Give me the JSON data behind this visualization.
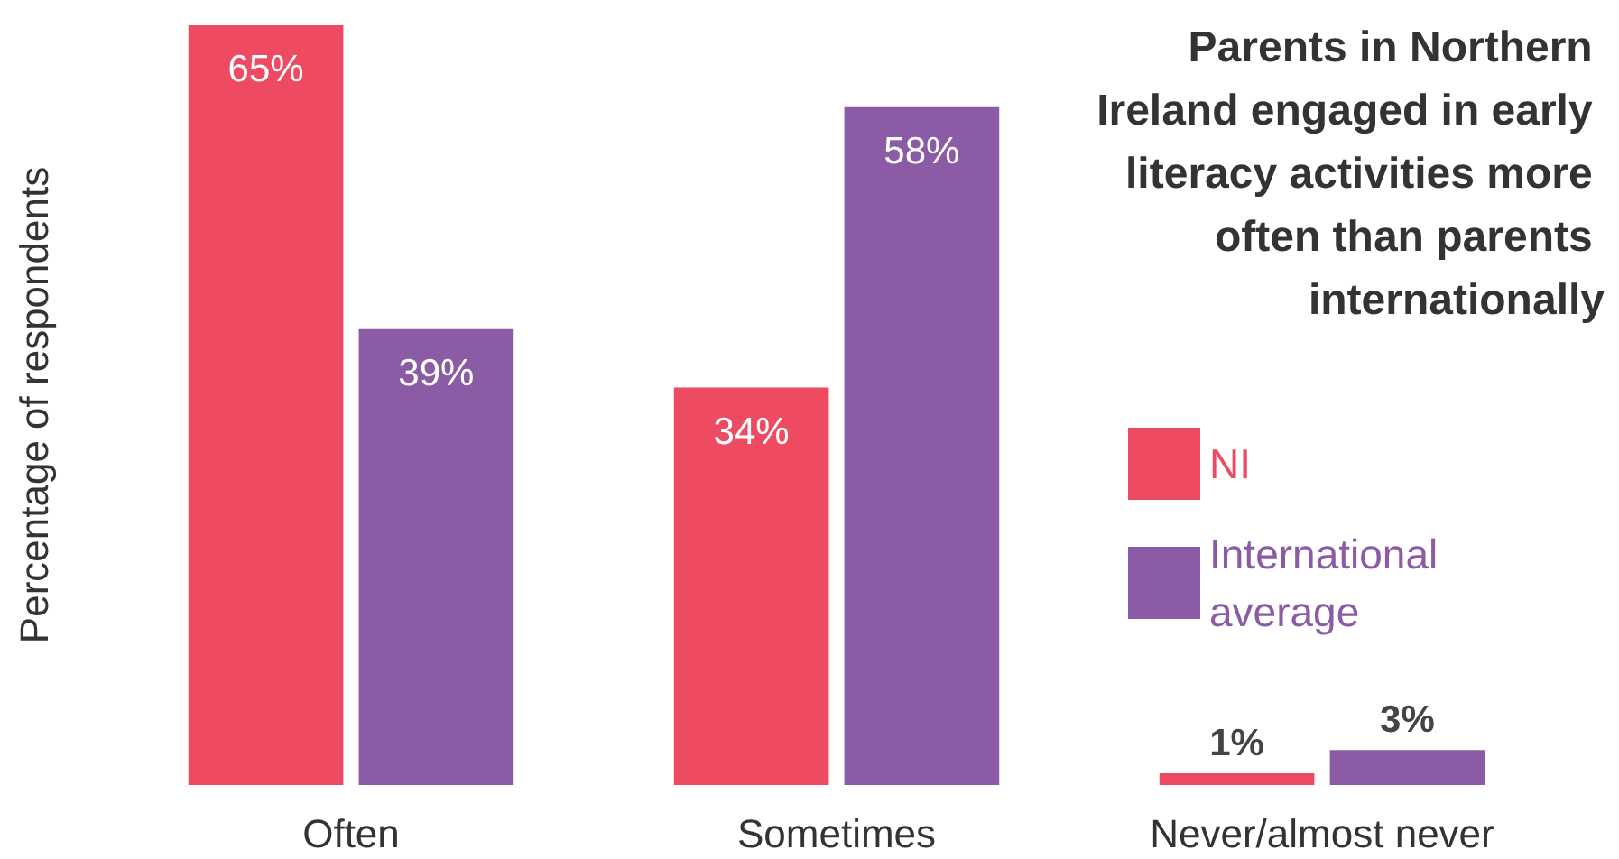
{
  "chart_data": {
    "type": "bar",
    "title": "Parents in Northern Ireland engaged in early literacy activities more often than parents internationally",
    "ylabel": "Percentage of respondents",
    "categories": [
      "Often",
      "Sometimes",
      "Never/almost never"
    ],
    "series": [
      {
        "name": "NI",
        "color": "#ee4b62",
        "values": [
          65,
          34,
          1
        ],
        "value_labels": [
          "65%",
          "34%",
          "1%"
        ]
      },
      {
        "name": "International average",
        "color": "#8c5ba5",
        "values": [
          39,
          58,
          3
        ],
        "value_labels": [
          "39%",
          "58%",
          "3%"
        ]
      }
    ],
    "legend": "right",
    "grid": false,
    "tick_labels": "x"
  }
}
